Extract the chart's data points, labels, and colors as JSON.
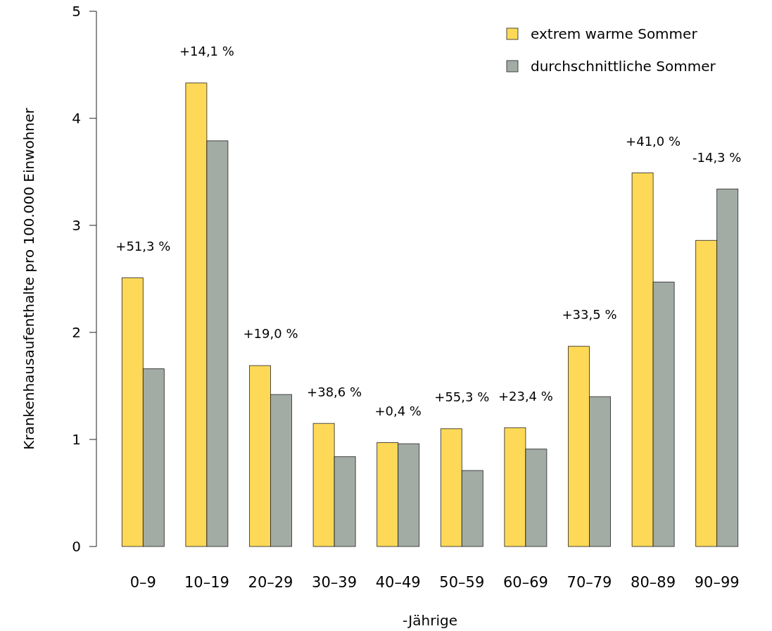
{
  "chart_data": {
    "type": "bar",
    "xlabel": "-Jährige",
    "ylabel": "Krankenhausaufenthalte pro 100.000 Einwohner",
    "categories": [
      "0–9",
      "10–19",
      "20–29",
      "30–39",
      "40–49",
      "50–59",
      "60–69",
      "70–79",
      "80–89",
      "90–99"
    ],
    "series": [
      {
        "name": "extrem warme Sommer",
        "color": "#fed957",
        "values": [
          2.51,
          4.33,
          1.69,
          1.15,
          0.97,
          1.1,
          1.11,
          1.87,
          3.49,
          2.86
        ]
      },
      {
        "name": "durchschnittliche Sommer",
        "color": "#a3aba5",
        "values": [
          1.66,
          3.79,
          1.42,
          0.84,
          0.96,
          0.71,
          0.91,
          1.4,
          2.47,
          3.34
        ]
      }
    ],
    "ylim": [
      0,
      5
    ],
    "yticks": [
      0,
      1,
      2,
      3,
      4,
      5
    ],
    "grid": false,
    "legend": "top right",
    "annotations": [
      {
        "text": "+51,3 %",
        "x": "0–9",
        "y": 2.51
      },
      {
        "text": "+14,1 %",
        "x": "10–19",
        "y": 4.33
      },
      {
        "text": "+19,0 %",
        "x": "20–29",
        "y": 1.69
      },
      {
        "text": "+38,6 %",
        "x": "30–39",
        "y": 1.15
      },
      {
        "text": "+0,4 %",
        "x": "40–49",
        "y": 0.97
      },
      {
        "text": "+55,3 %",
        "x": "50–59",
        "y": 1.1
      },
      {
        "text": "+23,4 %",
        "x": "60–69",
        "y": 1.11
      },
      {
        "text": "+33,5 %",
        "x": "70–79",
        "y": 1.87
      },
      {
        "text": "+41,0 %",
        "x": "80–89",
        "y": 3.49
      },
      {
        "text": "-14,3 %",
        "x": "90–99",
        "y": 3.34
      }
    ]
  }
}
